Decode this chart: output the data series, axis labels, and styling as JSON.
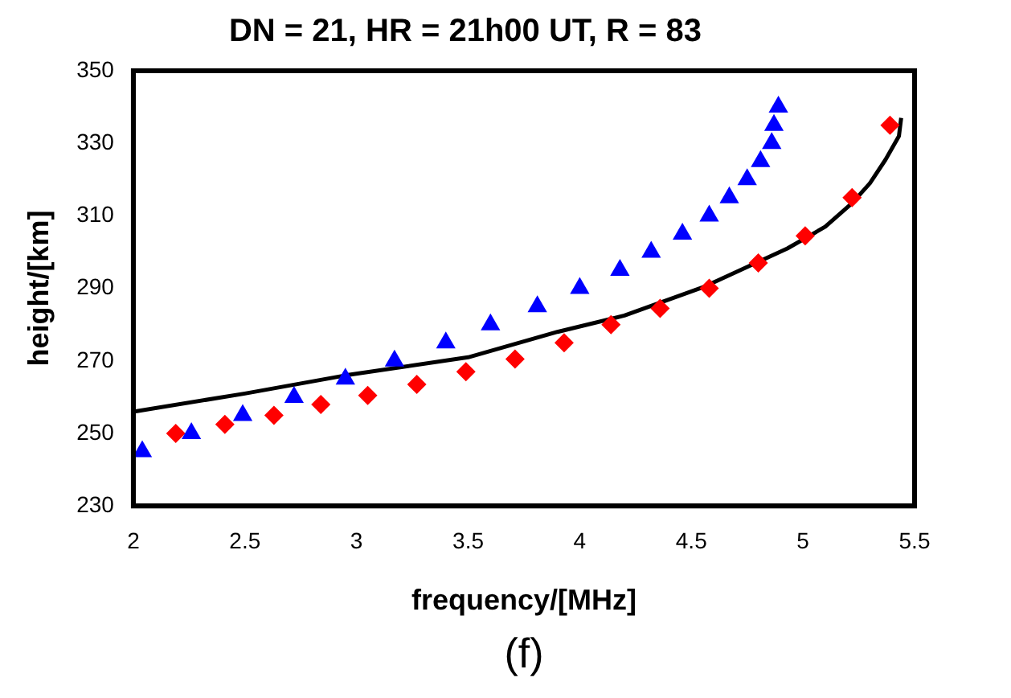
{
  "chart_data": {
    "type": "scatter",
    "title": "DN = 21, HR = 21h00 UT, R = 83",
    "xlabel": "frequency/[MHz]",
    "ylabel": "height/[km]",
    "annotations": [
      "(f)"
    ],
    "xlim": [
      2,
      5.5
    ],
    "xticks": [
      2,
      2.5,
      3,
      3.5,
      4,
      4.5,
      5,
      5.5
    ],
    "ylim": [
      230,
      350
    ],
    "yticks": [
      230,
      250,
      270,
      290,
      310,
      330,
      350
    ],
    "grid": false,
    "legend": false,
    "series": [
      {
        "color": "#0000ff",
        "marker": "triangle",
        "x": [
          2.04,
          2.26,
          2.49,
          2.72,
          2.95,
          3.17,
          3.4,
          3.6,
          3.81,
          4.0,
          4.18,
          4.32,
          4.46,
          4.58,
          4.67,
          4.75,
          4.81,
          4.86,
          4.87,
          4.89
        ],
        "values": [
          245,
          250,
          255,
          260,
          265,
          270,
          275,
          280,
          285,
          290,
          295,
          300,
          305,
          310,
          315,
          320,
          325,
          330,
          335,
          340
        ]
      },
      {
        "color": "#ff0000",
        "marker": "diamond",
        "x": [
          2.19,
          2.41,
          2.63,
          2.84,
          3.05,
          3.27,
          3.49,
          3.71,
          3.93,
          4.14,
          4.36,
          4.58,
          4.8,
          5.01,
          5.22,
          5.39
        ],
        "values": [
          250,
          252.5,
          255,
          258,
          260.5,
          263.5,
          267,
          270.5,
          275,
          280,
          284.5,
          290,
          297,
          304.5,
          315,
          335
        ]
      },
      {
        "type": "line",
        "color": "#000000",
        "marker": "none",
        "line_style": "solid",
        "x": [
          2,
          2.5,
          2.95,
          3.5,
          3.9,
          4.2,
          4.56,
          4.93,
          5.1,
          5.22,
          5.3,
          5.37,
          5.43,
          5.44
        ],
        "values": [
          256,
          261,
          266,
          271,
          278,
          282.5,
          290.5,
          301,
          307,
          313.5,
          319,
          325.5,
          332,
          337
        ]
      }
    ]
  }
}
